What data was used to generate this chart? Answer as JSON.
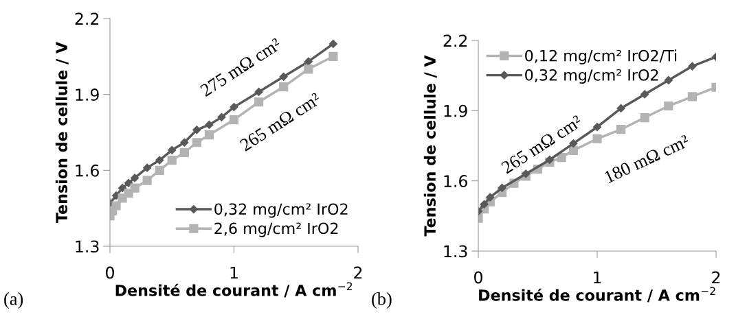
{
  "chart_data": [
    {
      "type": "line",
      "xlabel": "Densité de courant / A cm$^{−2}$",
      "ylabel": "Tension de cellule / V",
      "xlim": [
        0,
        2
      ],
      "xticks": [
        0,
        1,
        2
      ],
      "ylim": [
        1.3,
        2.2
      ],
      "yticks": [
        1.3,
        1.6,
        1.9,
        2.2
      ],
      "grid": false,
      "legend": "bottom right",
      "line_style": "solid",
      "series": [
        {
          "name": "0,32 mg/cm² IrO2",
          "color": "#595959",
          "marker": "diamond",
          "x": [
            0,
            0.05,
            0.1,
            0.15,
            0.2,
            0.3,
            0.4,
            0.5,
            0.6,
            0.7,
            0.8,
            0.9,
            1.0,
            1.2,
            1.4,
            1.6,
            1.8
          ],
          "values": [
            1.47,
            1.5,
            1.53,
            1.55,
            1.57,
            1.61,
            1.64,
            1.68,
            1.71,
            1.76,
            1.78,
            1.81,
            1.85,
            1.91,
            1.97,
            2.03,
            2.1
          ]
        },
        {
          "name": "2,6 mg/cm² IrO2",
          "color": "#b3b3b3",
          "marker": "square",
          "x": [
            0,
            0.02,
            0.05,
            0.1,
            0.15,
            0.2,
            0.3,
            0.4,
            0.5,
            0.6,
            0.7,
            0.8,
            1.0,
            1.2,
            1.4,
            1.6,
            1.8
          ],
          "values": [
            1.42,
            1.44,
            1.46,
            1.49,
            1.51,
            1.53,
            1.56,
            1.6,
            1.64,
            1.67,
            1.71,
            1.74,
            1.8,
            1.87,
            1.93,
            2.0,
            2.05
          ]
        }
      ],
      "annotations": [
        "275 mΩ cm²",
        "265 mΩ cm²",
        "(a)"
      ]
    },
    {
      "type": "line",
      "xlabel": "Densité de courant / A cm$^{−2}$",
      "ylabel": "Tension de cellule / V",
      "xlim": [
        0,
        2
      ],
      "xticks": [
        0,
        1,
        2
      ],
      "ylim": [
        1.3,
        2.2
      ],
      "yticks": [
        1.3,
        1.6,
        1.9,
        2.2
      ],
      "grid": false,
      "legend": "top left",
      "line_style": "solid",
      "series": [
        {
          "name": "0,12 mg/cm² IrO2/Ti",
          "color": "#b3b3b3",
          "marker": "square",
          "x": [
            0,
            0.05,
            0.1,
            0.2,
            0.3,
            0.4,
            0.5,
            0.6,
            0.7,
            0.8,
            1.0,
            1.2,
            1.4,
            1.6,
            1.8,
            2.0
          ],
          "values": [
            1.44,
            1.48,
            1.51,
            1.55,
            1.59,
            1.62,
            1.65,
            1.68,
            1.7,
            1.73,
            1.78,
            1.82,
            1.87,
            1.92,
            1.96,
            2.0
          ]
        },
        {
          "name": "0,32 mg/cm² IrO2",
          "color": "#595959",
          "marker": "diamond",
          "x": [
            0,
            0.05,
            0.1,
            0.2,
            0.4,
            0.6,
            0.8,
            1.0,
            1.2,
            1.4,
            1.6,
            1.8,
            2.0
          ],
          "values": [
            1.47,
            1.5,
            1.53,
            1.57,
            1.63,
            1.69,
            1.76,
            1.83,
            1.91,
            1.97,
            2.03,
            2.09,
            2.13
          ]
        }
      ],
      "annotations": [
        "265 mΩ cm²",
        "180 mΩ cm²",
        "(b)"
      ]
    }
  ]
}
